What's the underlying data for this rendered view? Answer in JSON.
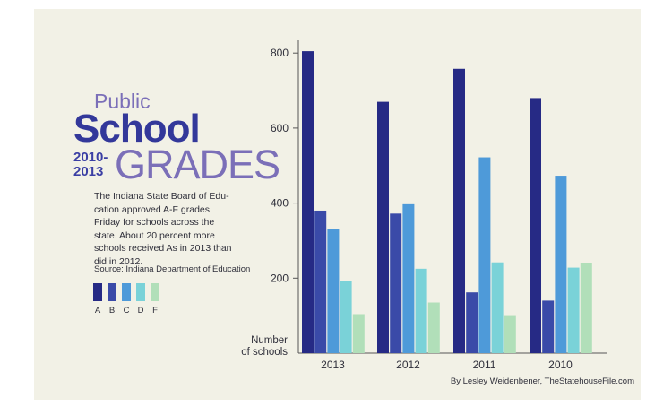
{
  "info": {
    "title_line1": "Public",
    "title_line2": "School",
    "years_line1": "2010-",
    "years_line2": "2013",
    "title_line3": "GRADES",
    "description": "The Indiana State Board of Edu-cation approved A-F grades Friday for schools across the state. About 20 percent more schools received As in 2013 than did in 2012.",
    "source": "Source: Indiana Department of Education",
    "byline": "By Lesley Weidenbener, TheStatehouseFile.com"
  },
  "colors": {
    "background": "#f2f1e6",
    "A": "#262a85",
    "B": "#3a4aa8",
    "C": "#4e9ad9",
    "D": "#7ad2d8",
    "F": "#b1dfb9"
  },
  "chart_data": {
    "type": "bar",
    "categories": [
      "2013",
      "2012",
      "2011",
      "2010"
    ],
    "series": [
      {
        "name": "A",
        "values": [
          805,
          670,
          758,
          680
        ]
      },
      {
        "name": "B",
        "values": [
          380,
          372,
          162,
          140
        ]
      },
      {
        "name": "C",
        "values": [
          330,
          397,
          522,
          473
        ]
      },
      {
        "name": "D",
        "values": [
          193,
          225,
          242,
          228
        ]
      },
      {
        "name": "F",
        "values": [
          104,
          135,
          99,
          240
        ]
      }
    ],
    "ylabel_line1": "Number",
    "ylabel_line2": "of schools",
    "y_ticks": [
      200,
      400,
      600,
      800
    ],
    "ylim": [
      0,
      820
    ],
    "grid": false,
    "legend": "left"
  }
}
